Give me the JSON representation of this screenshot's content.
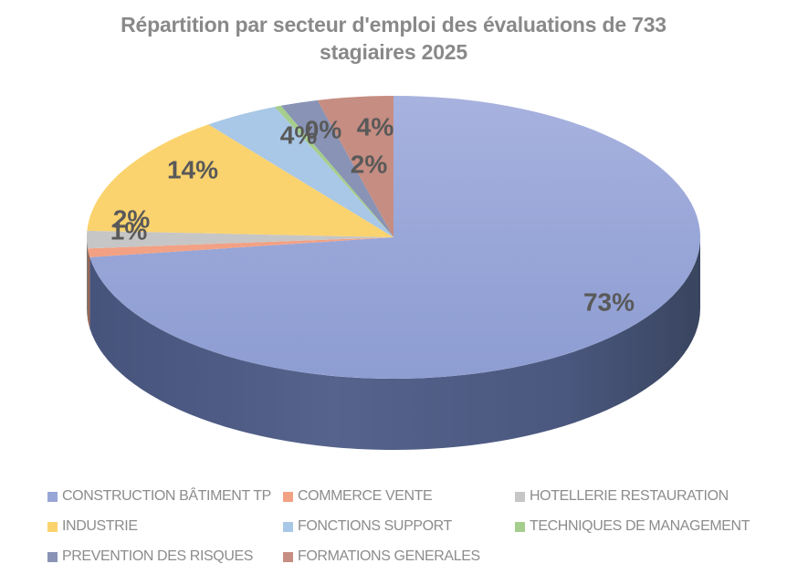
{
  "chart_data": {
    "type": "pie",
    "style": "3d",
    "title": "Répartition par secteur d'emploi des évaluations de 733 stagiaires 2025",
    "start_angle": 0,
    "direction": "clockwise",
    "legend_position": "bottom",
    "categories": [
      "CONSTRUCTION BÂTIMENT TP",
      "COMMERCE VENTE",
      "HOTELLERIE RESTAURATION",
      "INDUSTRIE",
      "FONCTIONS SUPPORT",
      "TECHNIQUES DE MANAGEMENT",
      "PREVENTION DES RISQUES",
      "FORMATIONS GENERALES"
    ],
    "values": [
      73,
      1,
      2,
      14,
      4,
      0,
      2,
      4
    ],
    "labels": [
      "73%",
      "1%",
      "2%",
      "14%",
      "4%",
      "0%",
      "2%",
      "4%"
    ],
    "colors": [
      "#97A5D7",
      "#F2A184",
      "#C6C6C6",
      "#FBD36E",
      "#A9C7E6",
      "#A5CE8D",
      "#8893B5",
      "#C68D82"
    ],
    "label_color": "#595959",
    "title_color": "#898989",
    "legend_text_color": "#8C8C8C"
  }
}
